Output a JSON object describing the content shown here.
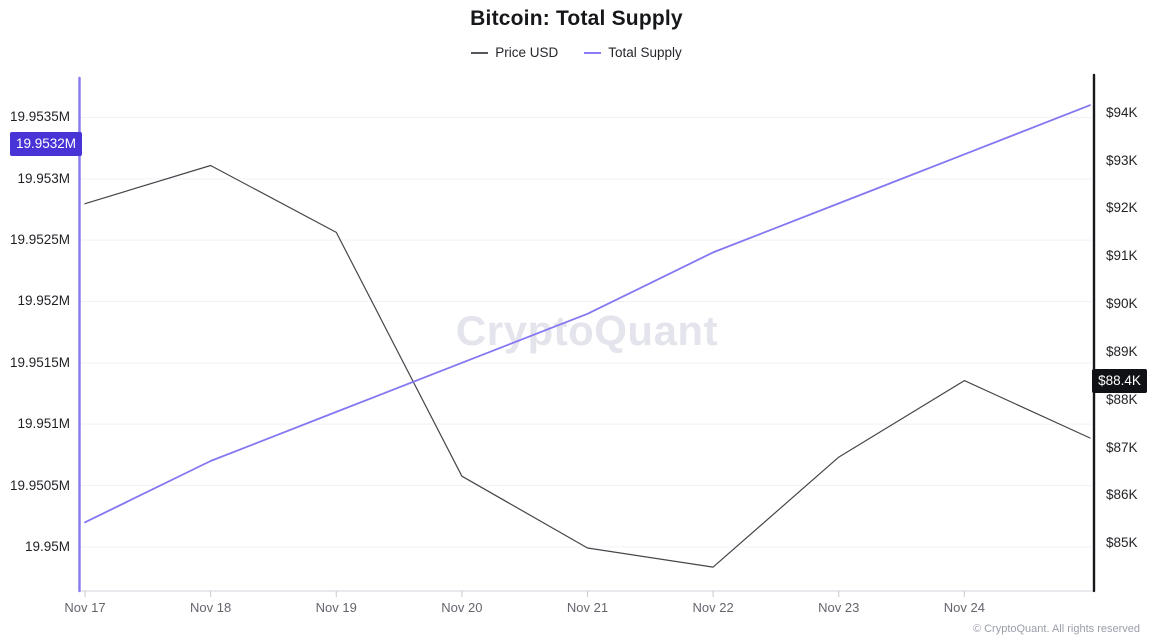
{
  "title": "Bitcoin: Total Supply",
  "legend": [
    {
      "label": "Price USD",
      "color": "#55565c"
    },
    {
      "label": "Total Supply",
      "color": "#8a7cf5"
    }
  ],
  "watermark": "CryptoQuant",
  "footer": "© CryptoQuant. All rights reserved",
  "badges": {
    "supply_badge": {
      "label": "19.9532M",
      "value": 19.9532,
      "bg": "#4733d6",
      "text_color": "#ffffff"
    },
    "price_badge": {
      "label": "$88.4K",
      "value": 88.4,
      "bg": "#101114",
      "text_color": "#ffffff"
    }
  },
  "colors": {
    "grid": "#f2f2f6",
    "bottom_axis": "#dcdce2",
    "x_tick": "#c9c9d0",
    "left_axis_line": "#8678f0",
    "right_axis_line": "#17181b"
  },
  "chart_data": {
    "type": "line",
    "categories": [
      "Nov 17",
      "Nov 18",
      "Nov 19",
      "Nov 20",
      "Nov 21",
      "Nov 22",
      "Nov 23",
      "Nov 24",
      ""
    ],
    "series": [
      {
        "name": "Price USD",
        "axis": "right",
        "color": "#45464b",
        "width": 1.2,
        "values": [
          92.1,
          92.9,
          91.5,
          86.4,
          84.9,
          84.5,
          86.8,
          88.4,
          87.2
        ]
      },
      {
        "name": "Total Supply",
        "axis": "left",
        "color": "#8477f2",
        "width": 1.8,
        "values": [
          19.9502,
          19.9507,
          19.9511,
          19.9515,
          19.9519,
          19.9524,
          19.9528,
          19.9532,
          19.9536
        ]
      }
    ],
    "left_axis": {
      "range": [
        19.94964,
        19.95383
      ],
      "ticks": [
        {
          "label": "19.9535M",
          "value": 19.9535
        },
        {
          "label": "19.953M",
          "value": 19.953
        },
        {
          "label": "19.9525M",
          "value": 19.9525
        },
        {
          "label": "19.952M",
          "value": 19.952
        },
        {
          "label": "19.9515M",
          "value": 19.9515
        },
        {
          "label": "19.951M",
          "value": 19.951
        },
        {
          "label": "19.9505M",
          "value": 19.9505
        },
        {
          "label": "19.95M",
          "value": 19.95
        }
      ]
    },
    "right_axis": {
      "range": [
        84.0,
        94.75
      ],
      "ticks": [
        {
          "label": "$94K",
          "value": 94
        },
        {
          "label": "$93K",
          "value": 93
        },
        {
          "label": "$92K",
          "value": 92
        },
        {
          "label": "$91K",
          "value": 91
        },
        {
          "label": "$90K",
          "value": 90
        },
        {
          "label": "$89K",
          "value": 89
        },
        {
          "label": "$88K",
          "value": 88
        },
        {
          "label": "$87K",
          "value": 87
        },
        {
          "label": "$86K",
          "value": 86
        },
        {
          "label": "$85K",
          "value": 85
        }
      ]
    },
    "grid": true,
    "legend_position": "top"
  }
}
